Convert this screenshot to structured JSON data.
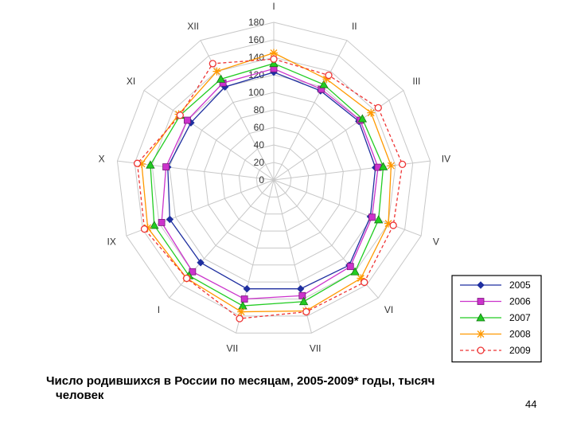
{
  "caption": {
    "line1": "Число родившихся в России по месяцам, 2005-2009* годы, тысяч",
    "line2": "человек"
  },
  "page_number": "44",
  "chart_data": {
    "type": "radar",
    "categories": [
      "I",
      "II",
      "III",
      "IV",
      "V",
      "VI",
      "VII",
      "VII",
      "I",
      "IX",
      "X",
      "XI",
      "XII"
    ],
    "radial_ticks": [
      0,
      20,
      40,
      60,
      80,
      100,
      120,
      140,
      160,
      180
    ],
    "rmax": 180,
    "grid": true,
    "legend_position": "bottom-right",
    "series": [
      {
        "name": "2005",
        "color": "#1f2fa0",
        "marker": "diamond",
        "dash": "",
        "values": [
          123,
          115,
          118,
          117,
          118,
          130,
          128,
          128,
          126,
          127,
          122,
          115,
          120
        ]
      },
      {
        "name": "2006",
        "color": "#cc33cc",
        "marker": "square",
        "dash": "",
        "values": [
          127,
          117,
          120,
          120,
          120,
          132,
          136,
          140,
          140,
          137,
          124,
          120,
          125
        ]
      },
      {
        "name": "2007",
        "color": "#22cc22",
        "marker": "triangle",
        "dash": "",
        "values": [
          133,
          123,
          123,
          126,
          128,
          140,
          143,
          148,
          146,
          146,
          142,
          130,
          130
        ]
      },
      {
        "name": "2008",
        "color": "#ff9900",
        "marker": "star",
        "dash": "",
        "values": [
          145,
          130,
          135,
          135,
          140,
          150,
          154,
          155,
          150,
          154,
          152,
          132,
          140
        ]
      },
      {
        "name": "2009",
        "color": "#ee3333",
        "marker": "circle",
        "dash": "4,3",
        "values": [
          138,
          135,
          145,
          148,
          146,
          156,
          155,
          163,
          150,
          158,
          157,
          130,
          150
        ]
      }
    ]
  }
}
